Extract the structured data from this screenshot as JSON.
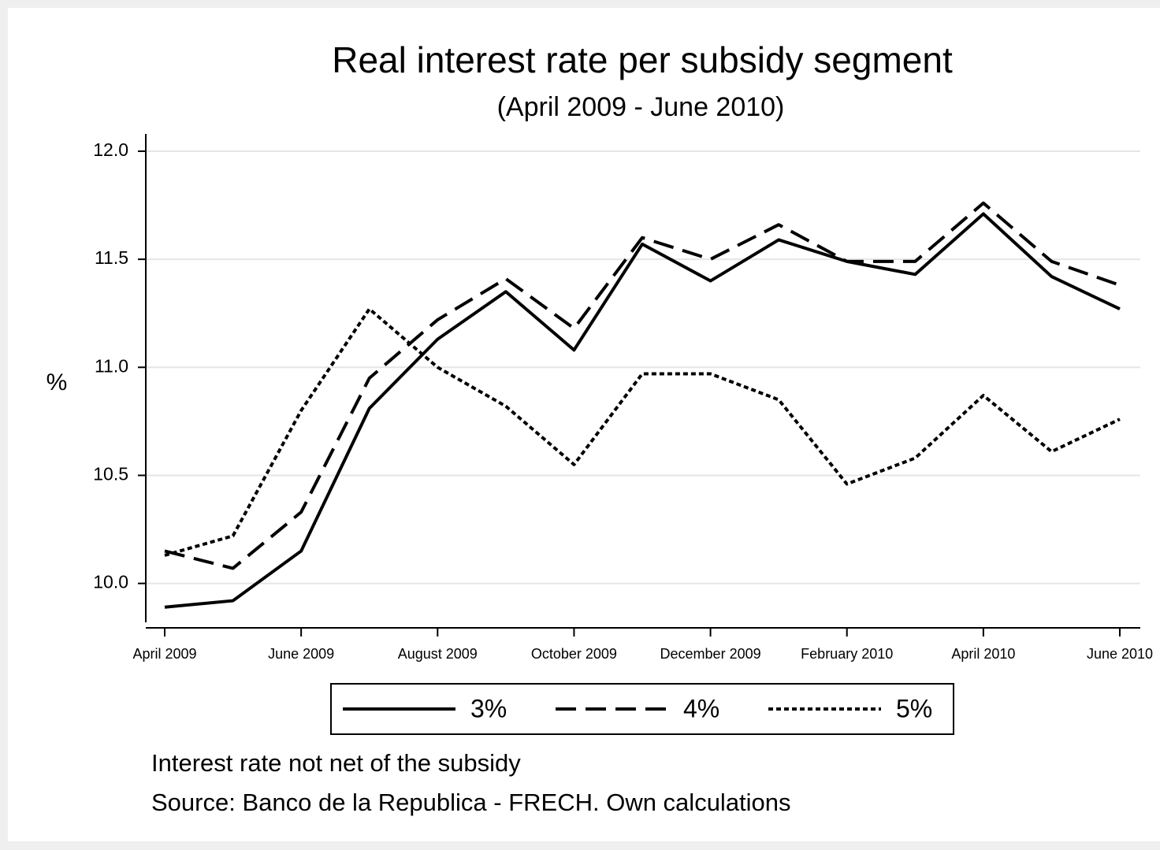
{
  "chart_data": {
    "type": "line",
    "title": "Real interest rate per subsidy segment",
    "subtitle": "(April 2009 - June 2010)",
    "y_label": "%",
    "categories": [
      "April 2009",
      null,
      "June 2009",
      null,
      "August 2009",
      null,
      "October 2009",
      null,
      "December 2009",
      null,
      "February 2010",
      null,
      "April 2010",
      null,
      "June 2010"
    ],
    "series": [
      {
        "name": "3%",
        "color": "#000000",
        "dash": "solid",
        "values": [
          9.89,
          9.92,
          10.15,
          10.81,
          11.13,
          11.35,
          11.08,
          11.57,
          11.4,
          11.59,
          11.49,
          11.43,
          11.71,
          11.42,
          11.27
        ]
      },
      {
        "name": "4%",
        "color": "#000000",
        "dash": "dashed",
        "values": [
          10.15,
          10.07,
          10.33,
          10.95,
          11.22,
          11.41,
          11.18,
          11.6,
          11.5,
          11.66,
          11.49,
          11.49,
          11.76,
          11.49,
          11.38
        ]
      },
      {
        "name": "5%",
        "color": "#000000",
        "dash": "dotted",
        "values": [
          10.13,
          10.22,
          10.8,
          11.27,
          11.0,
          10.82,
          10.55,
          10.97,
          10.97,
          10.85,
          10.46,
          10.58,
          10.87,
          10.61,
          10.76
        ]
      }
    ],
    "ylim": [
      9.82,
      12.08
    ],
    "yticks": [
      {
        "value": 10,
        "label": "10.0"
      },
      10.5,
      {
        "value": 11,
        "label": "11.0"
      },
      11.5,
      {
        "value": 12,
        "label": "12.0"
      }
    ],
    "grid": true,
    "legend": "bottom",
    "notes": [
      "Interest rate not net of the subsidy",
      "Source: Banco de la Republica - FRECH. Own calculations"
    ]
  }
}
